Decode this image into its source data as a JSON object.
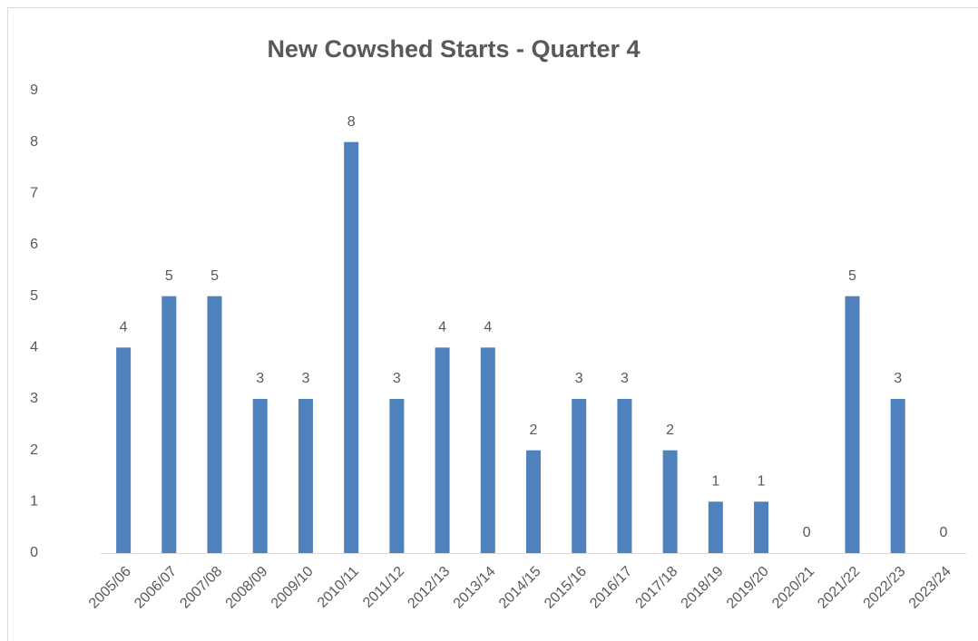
{
  "chart_data": {
    "type": "bar",
    "title": "New Cowshed Starts - Quarter 4",
    "categories": [
      "2005/06",
      "2006/07",
      "2007/08",
      "2008/09",
      "2009/10",
      "2010/11",
      "2011/12",
      "2012/13",
      "2013/14",
      "2014/15",
      "2015/16",
      "2016/17",
      "2017/18",
      "2018/19",
      "2019/20",
      "2020/21",
      "2021/22",
      "2022/23",
      "2023/24"
    ],
    "values": [
      4,
      5,
      5,
      3,
      3,
      8,
      3,
      4,
      4,
      2,
      3,
      3,
      2,
      1,
      1,
      0,
      5,
      3,
      0
    ],
    "color": "#4f81bd",
    "ylim": [
      0,
      9
    ],
    "yticks": [
      0,
      1,
      2,
      3,
      4,
      5,
      6,
      7,
      8,
      9
    ]
  }
}
